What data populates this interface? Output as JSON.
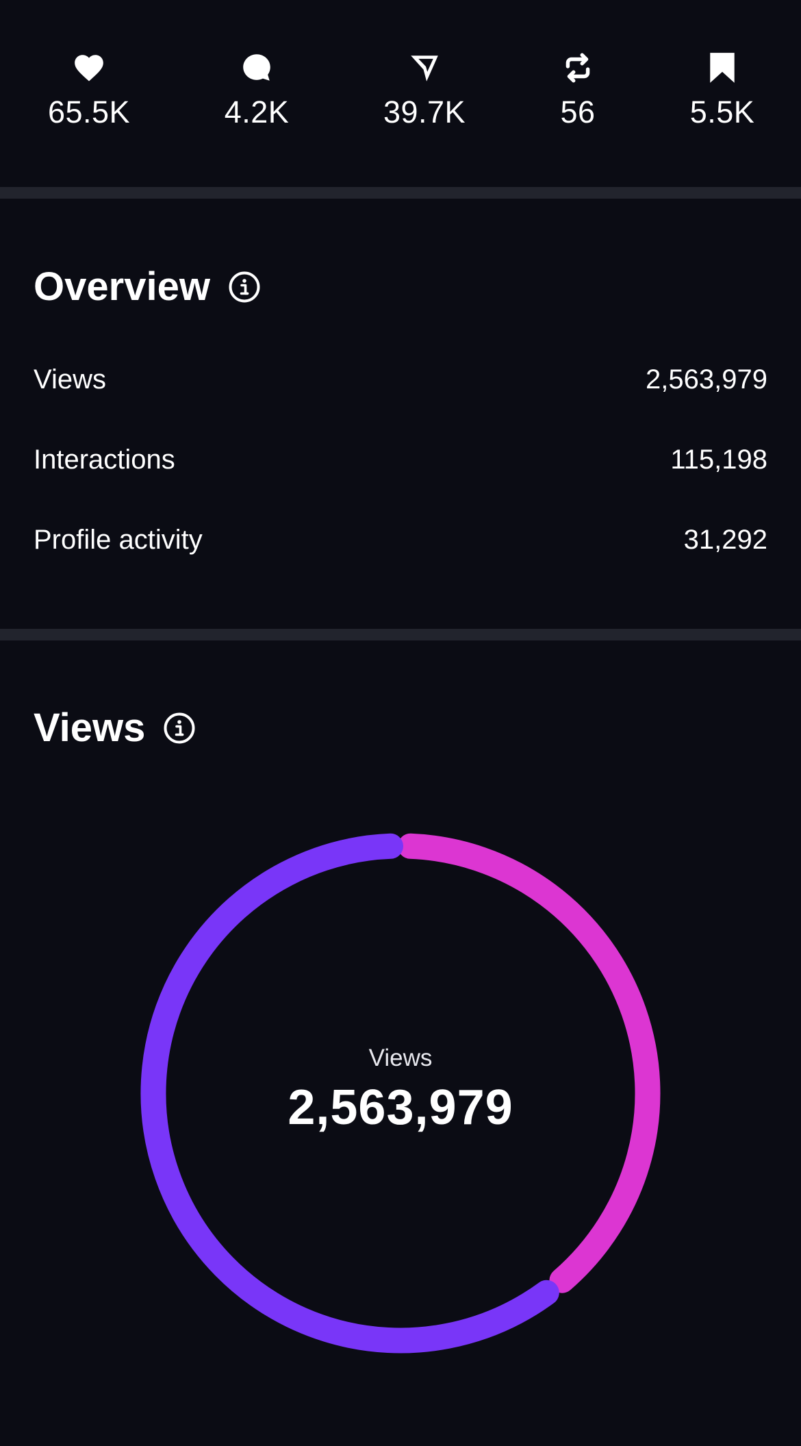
{
  "engagement": {
    "items": [
      {
        "icon": "heart-icon",
        "count": "65.5K"
      },
      {
        "icon": "comment-icon",
        "count": "4.2K"
      },
      {
        "icon": "send-icon",
        "count": "39.7K"
      },
      {
        "icon": "repost-icon",
        "count": "56"
      },
      {
        "icon": "bookmark-icon",
        "count": "5.5K"
      }
    ]
  },
  "overview": {
    "title": "Overview",
    "rows": [
      {
        "label": "Views",
        "value": "2,563,979"
      },
      {
        "label": "Interactions",
        "value": "115,198"
      },
      {
        "label": "Profile activity",
        "value": "31,292"
      }
    ]
  },
  "views": {
    "title": "Views",
    "center_label": "Views",
    "center_value": "2,563,979"
  },
  "chart_data": {
    "type": "pie",
    "donut": true,
    "total": 2563979,
    "segments": [
      {
        "color": "#dc36d2",
        "fraction": 0.393
      },
      {
        "color": "#7936f8",
        "fraction": 0.607
      }
    ]
  },
  "colors": {
    "background": "#0b0c14",
    "divider": "#22242d",
    "text": "#ffffff",
    "accent_magenta": "#dc36d2",
    "accent_purple": "#7936f8"
  }
}
